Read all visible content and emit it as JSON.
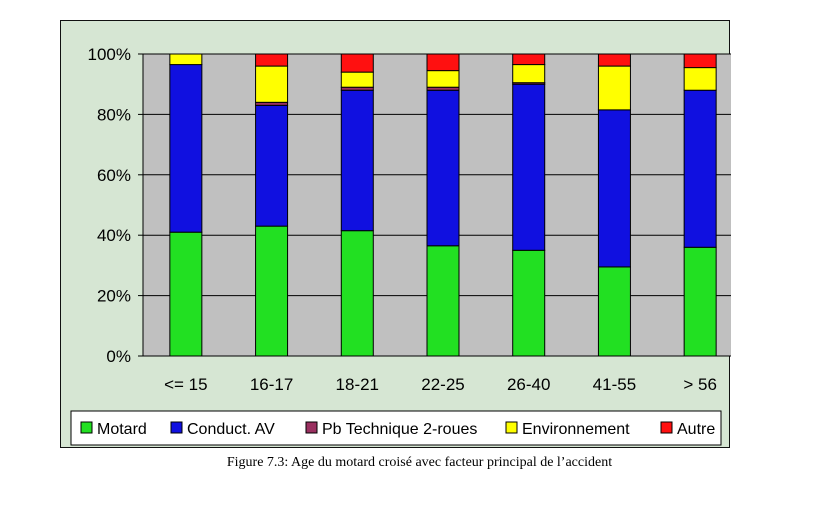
{
  "caption": "Figure 7.3: Age du motard croisé avec facteur principal de l’accident",
  "chart_data": {
    "type": "bar",
    "stacked": true,
    "title": "",
    "xlabel": "",
    "ylabel": "",
    "ylim": [
      0,
      100
    ],
    "y_ticks": [
      "0%",
      "20%",
      "40%",
      "60%",
      "80%",
      "100%"
    ],
    "grid": true,
    "legend_position": "bottom",
    "categories": [
      "<= 15",
      "16-17",
      "18-21",
      "22-25",
      "26-40",
      "41-55",
      "> 56"
    ],
    "series": [
      {
        "name": "Motard",
        "color": "#22e022",
        "values": [
          41,
          43,
          41.5,
          36.5,
          35,
          29.5,
          36
        ]
      },
      {
        "name": "Conduct. AV",
        "color": "#1010e0",
        "values": [
          55.5,
          40,
          46.5,
          51.5,
          55,
          52,
          52
        ]
      },
      {
        "name": "Pb Technique 2-roues",
        "color": "#9a3060",
        "values": [
          0,
          1,
          1,
          1,
          0.5,
          0,
          0
        ]
      },
      {
        "name": "Environnement",
        "color": "#ffff00",
        "values": [
          3.5,
          12,
          5,
          5.5,
          6,
          14.5,
          7.5
        ]
      },
      {
        "name": "Autre",
        "color": "#ff1010",
        "values": [
          0,
          4,
          6,
          5.5,
          3.5,
          4,
          4.5
        ]
      }
    ],
    "plot_background": "#c0c0c0"
  }
}
